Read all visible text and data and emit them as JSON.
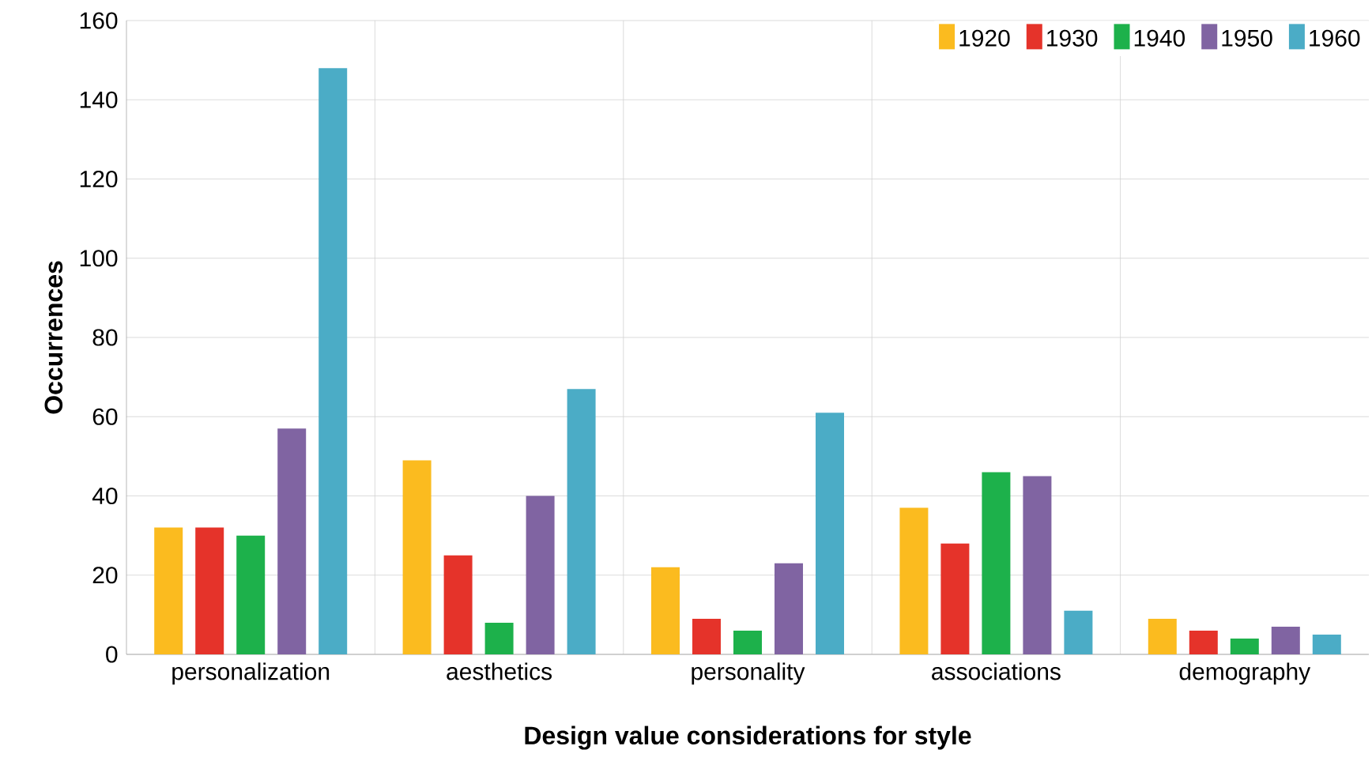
{
  "chart_data": {
    "type": "bar",
    "xlabel": "Design value considerations for style",
    "ylabel": "Occurrences",
    "categories": [
      "personalization",
      "aesthetics",
      "personality",
      "associations",
      "demography"
    ],
    "series": [
      {
        "name": "1920",
        "color": "#fbbb1f",
        "values": [
          32,
          49,
          22,
          37,
          9
        ]
      },
      {
        "name": "1930",
        "color": "#e5332a",
        "values": [
          32,
          25,
          9,
          28,
          6
        ]
      },
      {
        "name": "1940",
        "color": "#1db14b",
        "values": [
          30,
          8,
          6,
          46,
          4
        ]
      },
      {
        "name": "1950",
        "color": "#8064a2",
        "values": [
          57,
          40,
          23,
          45,
          7
        ]
      },
      {
        "name": "1960",
        "color": "#4bacc6",
        "values": [
          148,
          67,
          61,
          11,
          5
        ]
      }
    ],
    "ylim": [
      0,
      160
    ],
    "yticks": [
      0,
      20,
      40,
      60,
      80,
      100,
      120,
      140,
      160
    ],
    "grid": true,
    "legend": "top right"
  }
}
